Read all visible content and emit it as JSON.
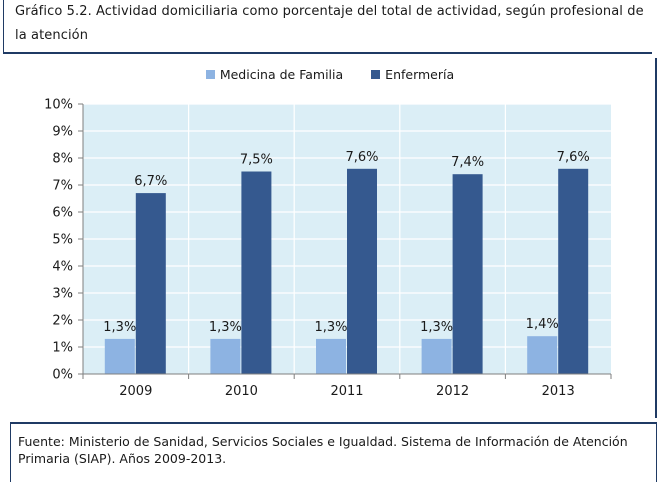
{
  "title": "Gráfico 5.2. Actividad domiciliaria como porcentaje del total de actividad, según profesional de la atención",
  "footer": "Fuente: Ministerio de Sanidad, Servicios Sociales e Igualdad. Sistema de Información de Atención Primaria (SIAP). Años 2009-2013.",
  "chart_data": {
    "type": "bar",
    "categories": [
      "2009",
      "2010",
      "2011",
      "2012",
      "2013"
    ],
    "series": [
      {
        "name": "Medicina de Familia",
        "color": "#8db3e2",
        "values": [
          1.3,
          1.3,
          1.3,
          1.3,
          1.4
        ],
        "labels": [
          "1,3%",
          "1,3%",
          "1,3%",
          "1,3%",
          "1,4%"
        ]
      },
      {
        "name": "Enfermería",
        "color": "#35598f",
        "values": [
          6.7,
          7.5,
          7.6,
          7.4,
          7.6
        ],
        "labels": [
          "6,7%",
          "7,5%",
          "7,6%",
          "7,4%",
          "7,6%"
        ]
      }
    ],
    "ylim": [
      0,
      10
    ],
    "yticks": [
      "0%",
      "1%",
      "2%",
      "3%",
      "4%",
      "5%",
      "6%",
      "7%",
      "8%",
      "9%",
      "10%"
    ],
    "grid": true,
    "legend_position": "top-center",
    "plot_background": "#dbeef6"
  }
}
